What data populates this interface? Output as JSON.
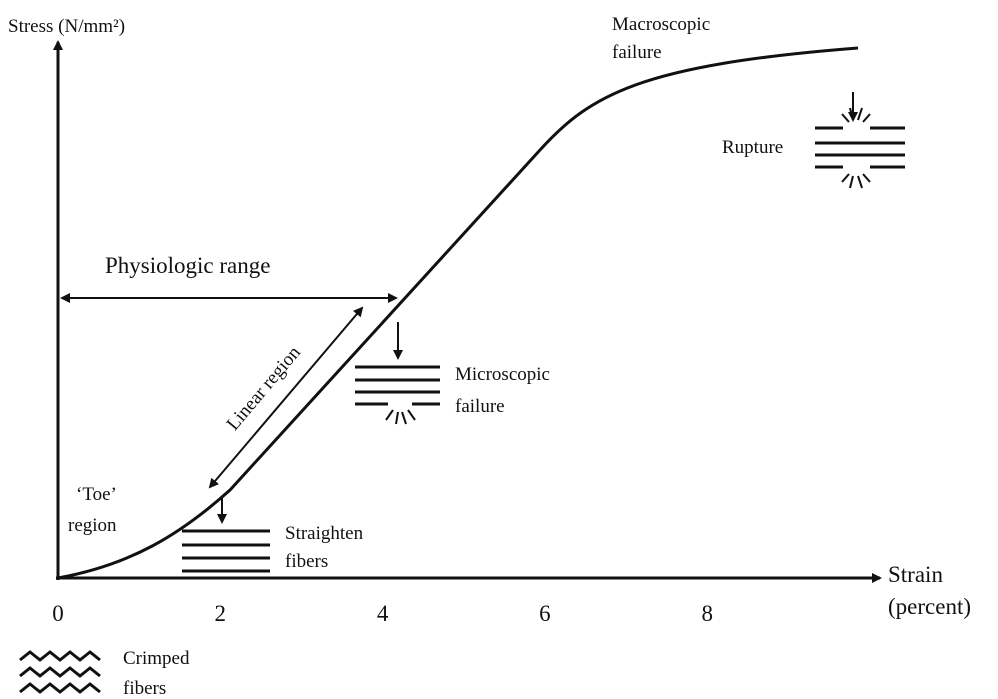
{
  "axes": {
    "y_label": "Stress (N/mm²)",
    "x_label": [
      "Strain",
      "(percent)"
    ],
    "x_ticks": [
      0,
      2,
      4,
      6,
      8
    ]
  },
  "annotations": {
    "macroscopic_failure": [
      "Macroscopic",
      "failure"
    ],
    "rupture": "Rupture",
    "physiologic_range": "Physiologic range",
    "linear_region": "Linear region",
    "microscopic_failure": [
      "Microscopic",
      "failure"
    ],
    "toe_region": [
      "‘Toe’",
      "region"
    ],
    "straighten_fibers": [
      "Straighten",
      "fibers"
    ],
    "crimped_fibers": [
      "Crimped",
      "fibers"
    ]
  }
}
